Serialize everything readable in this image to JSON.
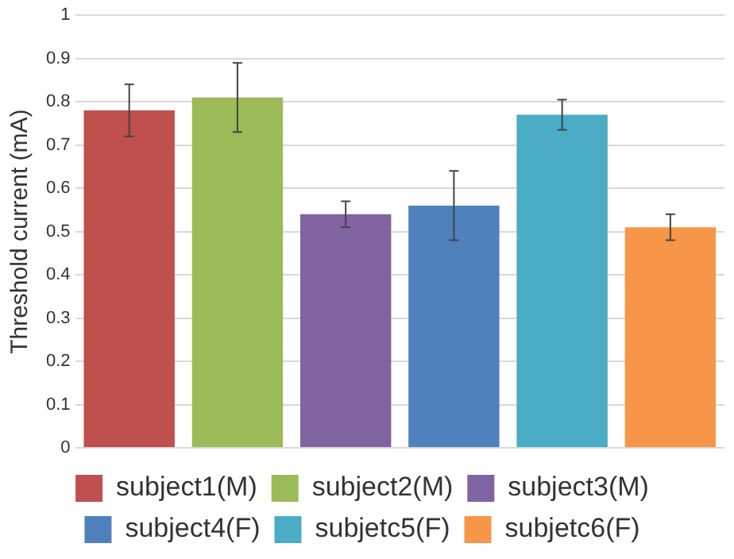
{
  "chart_data": {
    "type": "bar",
    "ylabel": "Threshold current (mA)",
    "categories": [
      null,
      null,
      null,
      null,
      null,
      null
    ],
    "series": [
      {
        "name": "subject1(M)",
        "color": "#c0504d",
        "values": [
          0.78,
          null,
          null,
          null,
          null,
          null
        ],
        "errors": [
          0.06,
          null,
          null,
          null,
          null,
          null
        ]
      },
      {
        "name": "subject2(M)",
        "color": "#9bbb59",
        "values": [
          null,
          0.81,
          null,
          null,
          null,
          null
        ],
        "errors": [
          null,
          0.08,
          null,
          null,
          null,
          null
        ]
      },
      {
        "name": "subject3(M)",
        "color": "#8064a2",
        "values": [
          null,
          null,
          0.54,
          null,
          null,
          null
        ],
        "errors": [
          null,
          null,
          0.03,
          null,
          null,
          null
        ]
      },
      {
        "name": "subject4(F)",
        "color": "#4f81bd",
        "values": [
          null,
          null,
          null,
          0.56,
          null,
          null
        ],
        "errors": [
          null,
          null,
          null,
          0.08,
          null,
          null
        ]
      },
      {
        "name": "subjetc5(F)",
        "color": "#4bacc6",
        "values": [
          null,
          null,
          null,
          null,
          0.77,
          null
        ],
        "errors": [
          null,
          null,
          null,
          null,
          0.035,
          null
        ]
      },
      {
        "name": "subjetc6(F)",
        "color": "#f79646",
        "values": [
          null,
          null,
          null,
          null,
          null,
          0.51
        ],
        "errors": [
          null,
          null,
          null,
          null,
          null,
          0.03
        ]
      }
    ],
    "ylim": [
      0,
      1
    ],
    "yticks": [
      0,
      0.1,
      0.2,
      0.3,
      0.4,
      0.5,
      0.6,
      0.7,
      0.8,
      0.9,
      1
    ],
    "grid": "y",
    "legend": "bottom"
  }
}
